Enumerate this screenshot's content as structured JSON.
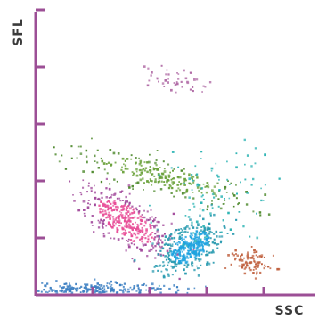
{
  "chart_data": {
    "type": "scatter",
    "title": "",
    "xlabel": "SSC",
    "ylabel": "SFL",
    "xlim": [
      0,
      1
    ],
    "ylim": [
      0,
      1
    ],
    "x_ticks": 5,
    "y_ticks": 5,
    "grid": false,
    "axis_color": "#9c4f96",
    "series": [
      {
        "color": "#e84d97",
        "center": [
          0.33,
          0.26
        ],
        "spread": [
          0.04,
          0.09
        ],
        "rotation": -55,
        "count": 420,
        "edge_color": "#a0479a"
      },
      {
        "color": "#6aa13a",
        "center": [
          0.45,
          0.42
        ],
        "spread": [
          0.03,
          0.17
        ],
        "rotation": -75,
        "count": 260,
        "edge_color": "#4f8a2e"
      },
      {
        "color": "#b06aa5",
        "center": [
          0.52,
          0.76
        ],
        "spread": [
          0.025,
          0.08
        ],
        "rotation": -80,
        "count": 45
      },
      {
        "color": "#1fa3df",
        "center": [
          0.56,
          0.17
        ],
        "spread": [
          0.06,
          0.035
        ],
        "rotation": -35,
        "count": 420,
        "edge_color": "#2a9bb0"
      },
      {
        "color": "#2ab3b3",
        "center": [
          0.64,
          0.35
        ],
        "spread": [
          0.11,
          0.1
        ],
        "rotation": 0,
        "count": 90
      },
      {
        "color": "#c0613f",
        "center": [
          0.78,
          0.12
        ],
        "spread": [
          0.035,
          0.025
        ],
        "rotation": 0,
        "count": 90
      },
      {
        "color": "#3c7fc2",
        "center": [
          0.2,
          0.02
        ],
        "spread": [
          0.16,
          0.012
        ],
        "rotation": 0,
        "count": 260
      }
    ]
  }
}
